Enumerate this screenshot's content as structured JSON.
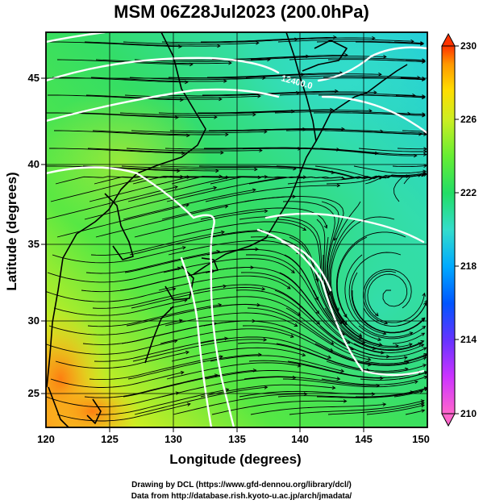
{
  "title": "MSM 06Z28Jul2023 (200.0hPa)",
  "map": {
    "x_axis_label": "Longitude (degrees)",
    "y_axis_label": "Latitude  (degrees)",
    "x_ticks": [
      "120",
      "125",
      "130",
      "135",
      "140",
      "145",
      "150"
    ],
    "y_ticks": [
      "25",
      "30",
      "35",
      "40",
      "45"
    ],
    "x_range": [
      120,
      150
    ],
    "y_range": [
      22.4,
      47.6
    ],
    "contour_label": "12400.0",
    "gridlines": true
  },
  "colorbar": {
    "ticks": [
      "230",
      "226",
      "222",
      "218",
      "214",
      "210"
    ],
    "range": [
      210,
      230
    ],
    "colors": [
      "#ff66cc",
      "#cc33ff",
      "#6633ff",
      "#0055ff",
      "#00aaff",
      "#33ddcc",
      "#22dd66",
      "#66ee33",
      "#ccee22",
      "#ffdd00",
      "#ff9900",
      "#ff3300"
    ]
  },
  "credits": {
    "line1": "Drawing by DCL (https://www.gfd-dennou.org/library/dcl/)",
    "line2": "Data from http://database.rish.kyoto-u.ac.jp/arch/jmadata/"
  }
}
